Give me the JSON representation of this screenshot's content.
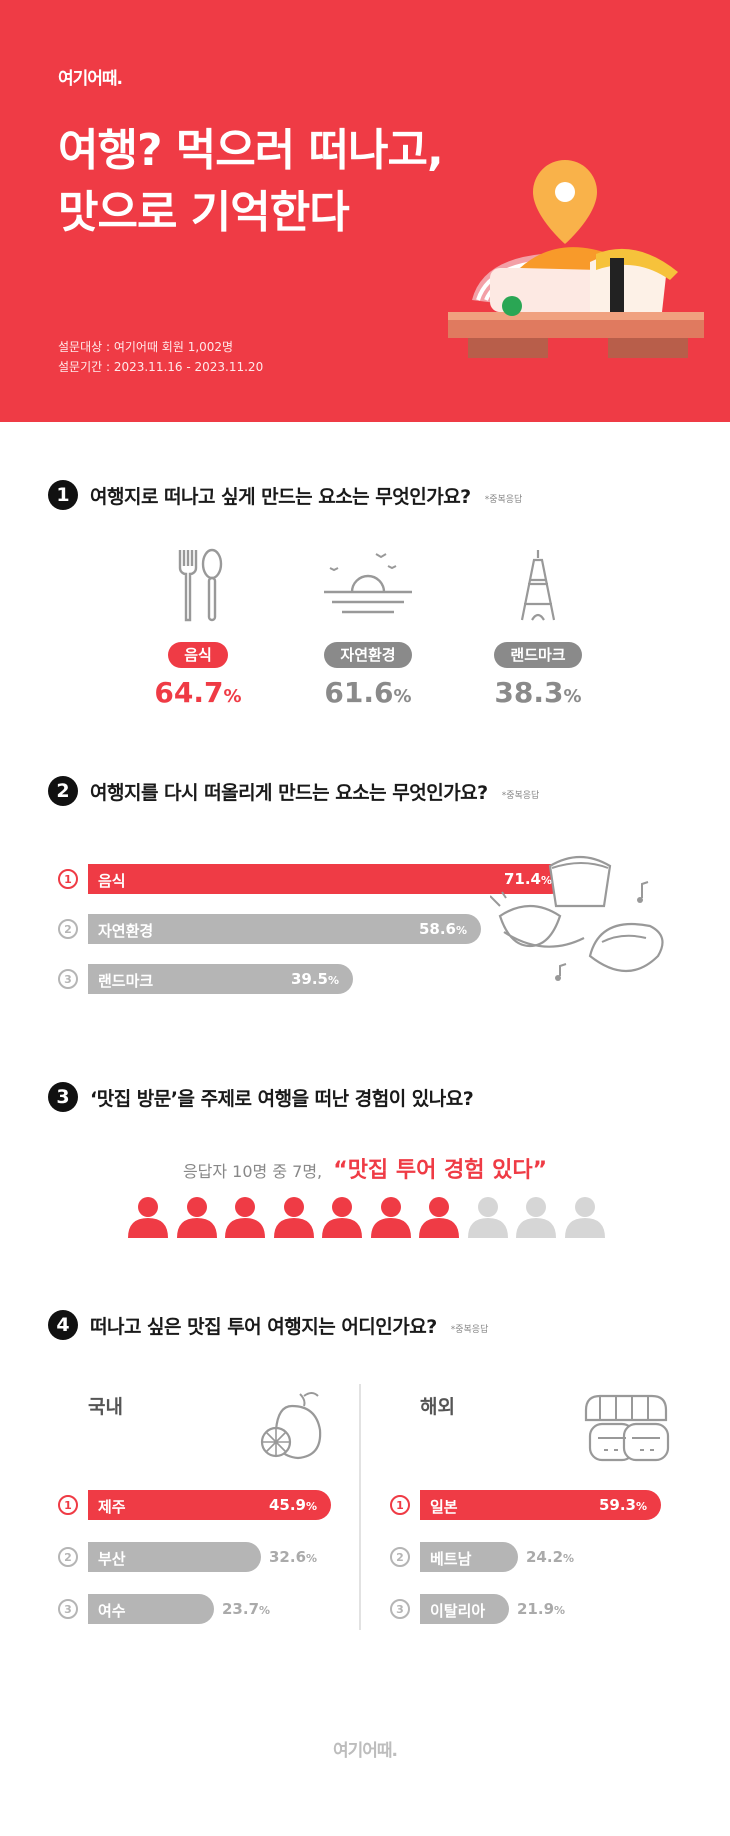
{
  "brand": "여기어때.",
  "hero": {
    "title_line1": "여행? 먹으러 떠나고,",
    "title_line2": "맛으로 기억한다",
    "target": "설문대상 : 여기어때 회원 1,002명",
    "period": "설문기간 : 2023.11.16 - 2023.11.20"
  },
  "colors": {
    "accent": "#ef3b45",
    "grey_bar": "#b5b5b5",
    "grey_text": "#8a8a8a"
  },
  "s1": {
    "num": "1",
    "question": "여행지로 떠나고 싶게 만드는 요소는 무엇인가요?",
    "note": "*중복응답",
    "items": [
      {
        "label": "음식",
        "value": "64.7",
        "unit": "%",
        "icon": "fork-spoon-icon",
        "highlight": true
      },
      {
        "label": "자연환경",
        "value": "61.6",
        "unit": "%",
        "icon": "sunset-icon",
        "highlight": false
      },
      {
        "label": "랜드마크",
        "value": "38.3",
        "unit": "%",
        "icon": "tower-icon",
        "highlight": false
      }
    ]
  },
  "s2": {
    "num": "2",
    "question": "여행지를 다시 떠올리게 만드는 요소는 무엇인가요?",
    "note": "*중복응답",
    "items": [
      {
        "rank": "1",
        "label": "음식",
        "value": "71.4",
        "unit": "%",
        "fraction": 0.714
      },
      {
        "rank": "2",
        "label": "자연환경",
        "value": "58.6",
        "unit": "%",
        "fraction": 0.586
      },
      {
        "rank": "3",
        "label": "랜드마크",
        "value": "39.5",
        "unit": "%",
        "fraction": 0.395
      }
    ]
  },
  "s3": {
    "num": "3",
    "question": "‘맛집 방문’을 주제로 여행을 떠난 경험이 있나요?",
    "lead": "응답자 10명 중 7명,",
    "highlight": "“맛집 투어 경험 있다”",
    "total": 10,
    "yes": 7
  },
  "s4": {
    "num": "4",
    "question": "떠나고 싶은 맛집 투어 여행지는 어디인가요?",
    "note": "*중복응답",
    "domestic": {
      "title": "국내",
      "icon": "citrus-icon",
      "items": [
        {
          "rank": "1",
          "label": "제주",
          "value": "45.9",
          "unit": "%",
          "fraction": 0.459
        },
        {
          "rank": "2",
          "label": "부산",
          "value": "32.6",
          "unit": "%",
          "fraction": 0.326
        },
        {
          "rank": "3",
          "label": "여수",
          "value": "23.7",
          "unit": "%",
          "fraction": 0.237
        }
      ]
    },
    "overseas": {
      "title": "해외",
      "icon": "sushi-icon",
      "items": [
        {
          "rank": "1",
          "label": "일본",
          "value": "59.3",
          "unit": "%",
          "fraction": 0.593
        },
        {
          "rank": "2",
          "label": "베트남",
          "value": "24.2",
          "unit": "%",
          "fraction": 0.242
        },
        {
          "rank": "3",
          "label": "이탈리아",
          "value": "21.9",
          "unit": "%",
          "fraction": 0.219
        }
      ]
    }
  }
}
